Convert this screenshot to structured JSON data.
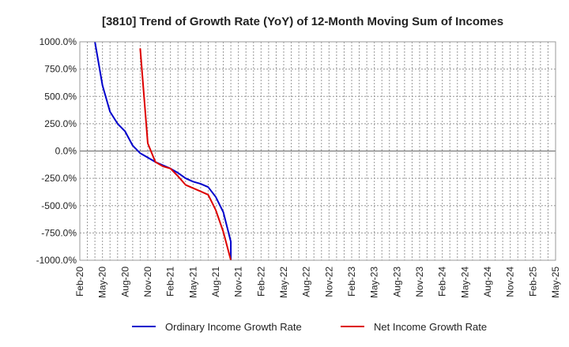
{
  "chart_data": {
    "type": "line",
    "title": "[3810]  Trend of Growth Rate (YoY) of 12-Month Moving Sum of Incomes",
    "xlabel": "",
    "ylabel": "",
    "ylim": [
      -1000,
      1000
    ],
    "y_ticks": [
      1000,
      750,
      500,
      250,
      0,
      -250,
      -500,
      -750,
      -1000
    ],
    "y_tick_labels": [
      "1000.0%",
      "750.0%",
      "500.0%",
      "250.0%",
      "0.0%",
      "-250.0%",
      "-500.0%",
      "-750.0%",
      "-1000.0%"
    ],
    "x_range": [
      "2020-02",
      "2025-05"
    ],
    "x_tick_labels": [
      "Feb-20",
      "May-20",
      "Aug-20",
      "Nov-20",
      "Feb-21",
      "May-21",
      "Aug-21",
      "Nov-21",
      "Feb-22",
      "May-22",
      "Aug-22",
      "Nov-22",
      "Feb-23",
      "May-23",
      "Aug-23",
      "Nov-23",
      "Feb-24",
      "May-24",
      "Aug-24",
      "Nov-24",
      "Feb-25",
      "May-25"
    ],
    "grid": true,
    "legend_position": "bottom",
    "series": [
      {
        "name": "Ordinary Income Growth Rate",
        "color": "#0000cc",
        "points": [
          [
            "2020-04",
            1000
          ],
          [
            "2020-05",
            600
          ],
          [
            "2020-06",
            360
          ],
          [
            "2020-07",
            250
          ],
          [
            "2020-08",
            180
          ],
          [
            "2020-09",
            50
          ],
          [
            "2020-10",
            -20
          ],
          [
            "2020-11",
            -60
          ],
          [
            "2020-12",
            -100
          ],
          [
            "2021-01",
            -130
          ],
          [
            "2021-02",
            -160
          ],
          [
            "2021-03",
            -200
          ],
          [
            "2021-04",
            -250
          ],
          [
            "2021-05",
            -280
          ],
          [
            "2021-06",
            -300
          ],
          [
            "2021-07",
            -330
          ],
          [
            "2021-08",
            -420
          ],
          [
            "2021-09",
            -560
          ],
          [
            "2021-10",
            -830
          ],
          [
            "2021-10",
            -1000
          ]
        ]
      },
      {
        "name": "Net Income Growth Rate",
        "color": "#dd0000",
        "points": [
          [
            "2020-10",
            940
          ],
          [
            "2020-11",
            70
          ],
          [
            "2020-12",
            -100
          ],
          [
            "2021-01",
            -140
          ],
          [
            "2021-02",
            -160
          ],
          [
            "2021-03",
            -230
          ],
          [
            "2021-04",
            -310
          ],
          [
            "2021-05",
            -340
          ],
          [
            "2021-06",
            -370
          ],
          [
            "2021-07",
            -400
          ],
          [
            "2021-08",
            -540
          ],
          [
            "2021-09",
            -740
          ],
          [
            "2021-10",
            -1000
          ]
        ]
      }
    ]
  }
}
